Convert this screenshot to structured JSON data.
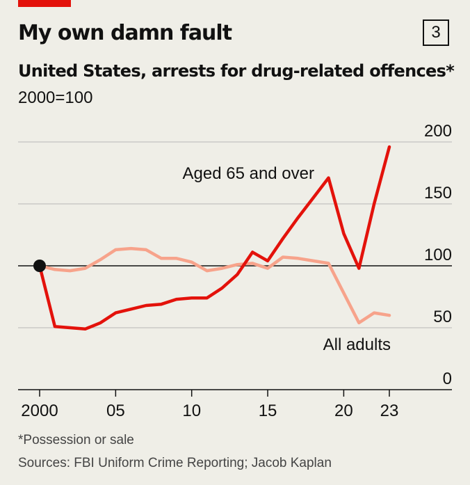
{
  "header": {
    "title": "My own damn fault",
    "badge": "3",
    "subtitle": "United States, arrests for drug-related offences*",
    "unit": "2000=100"
  },
  "footer": {
    "footnote": "*Possession or sale",
    "source": "Sources: FBI Uniform Crime Reporting; Jacob Kaplan"
  },
  "colors": {
    "accent": "#e3120b",
    "aged65": "#e3120b",
    "all_adults": "#f7a38b",
    "baseline": "#111111",
    "grid": "#b7b7b7"
  },
  "chart_data": {
    "type": "line",
    "title": "United States, arrests for drug-related offences*",
    "ylabel": "2000=100",
    "ylim": [
      0,
      200
    ],
    "xlim": [
      2000,
      2023
    ],
    "y_ticks": [
      "0",
      "50",
      "100",
      "150",
      "200"
    ],
    "y_tick_values": [
      0,
      50,
      100,
      150,
      200
    ],
    "x_ticks": [
      "2000",
      "05",
      "10",
      "15",
      "20",
      "23"
    ],
    "x_tick_values": [
      2000,
      2005,
      2010,
      2015,
      2020,
      2023
    ],
    "baseline_value": 100,
    "grid": true,
    "series": [
      {
        "name": "Aged 65 and over",
        "x": [
          2000,
          2001,
          2002,
          2003,
          2004,
          2005,
          2006,
          2007,
          2008,
          2009,
          2010,
          2011,
          2012,
          2013,
          2014,
          2015,
          2016,
          2017,
          2018,
          2019,
          2020,
          2021,
          2022,
          2023
        ],
        "values": [
          100,
          51,
          50,
          49,
          54,
          62,
          65,
          68,
          69,
          73,
          74,
          74,
          82,
          93,
          111,
          104,
          122,
          139,
          155,
          171,
          126,
          98,
          150,
          196
        ]
      },
      {
        "name": "All adults",
        "x": [
          2000,
          2001,
          2002,
          2003,
          2004,
          2005,
          2006,
          2007,
          2008,
          2009,
          2010,
          2011,
          2012,
          2013,
          2014,
          2015,
          2016,
          2017,
          2018,
          2019,
          2020,
          2021,
          2022,
          2023
        ],
        "values": [
          100,
          97,
          96,
          98,
          105,
          113,
          114,
          113,
          106,
          106,
          103,
          96,
          98,
          101,
          102,
          98,
          107,
          106,
          104,
          102,
          78,
          54,
          62,
          60
        ]
      }
    ]
  }
}
